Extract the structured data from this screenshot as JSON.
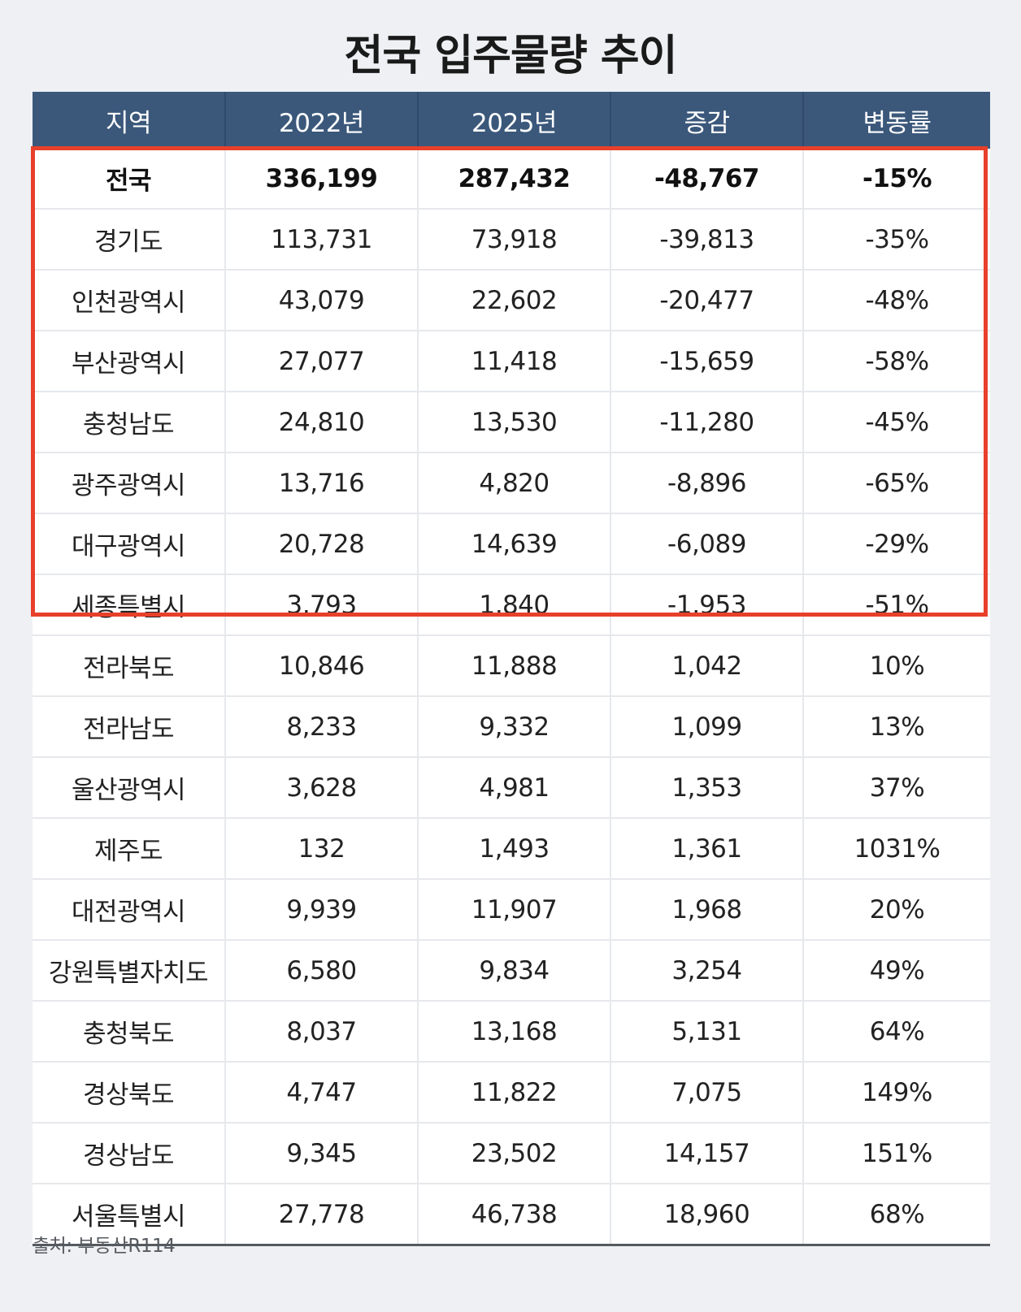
{
  "title": "전국 입주물량 추이",
  "table": {
    "headers": [
      "지역",
      "2022년",
      "2025년",
      "증감",
      "변동률"
    ],
    "rows": [
      [
        "전국",
        "336,199",
        "287,432",
        "-48,767",
        "-15%"
      ],
      [
        "경기도",
        "113,731",
        "73,918",
        "-39,813",
        "-35%"
      ],
      [
        "인천광역시",
        "43,079",
        "22,602",
        "-20,477",
        "-48%"
      ],
      [
        "부산광역시",
        "27,077",
        "11,418",
        "-15,659",
        "-58%"
      ],
      [
        "충청남도",
        "24,810",
        "13,530",
        "-11,280",
        "-45%"
      ],
      [
        "광주광역시",
        "13,716",
        "4,820",
        "-8,896",
        "-65%"
      ],
      [
        "대구광역시",
        "20,728",
        "14,639",
        "-6,089",
        "-29%"
      ],
      [
        "세종특별시",
        "3,793",
        "1,840",
        "-1,953",
        "-51%"
      ],
      [
        "전라북도",
        "10,846",
        "11,888",
        "1,042",
        "10%"
      ],
      [
        "전라남도",
        "8,233",
        "9,332",
        "1,099",
        "13%"
      ],
      [
        "울산광역시",
        "3,628",
        "4,981",
        "1,353",
        "37%"
      ],
      [
        "제주도",
        "132",
        "1,493",
        "1,361",
        "1031%"
      ],
      [
        "대전광역시",
        "9,939",
        "11,907",
        "1,968",
        "20%"
      ],
      [
        "강원특별자치도",
        "6,580",
        "9,834",
        "3,254",
        "49%"
      ],
      [
        "충청북도",
        "8,037",
        "13,168",
        "5,131",
        "64%"
      ],
      [
        "경상북도",
        "4,747",
        "11,822",
        "7,075",
        "149%"
      ],
      [
        "경상남도",
        "9,345",
        "23,502",
        "14,157",
        "151%"
      ],
      [
        "서울특별시",
        "27,778",
        "46,738",
        "18,960",
        "68%"
      ]
    ]
  },
  "highlight_color": "#e8402a",
  "header_color": "#3b587b",
  "source": "출처: 부동산R114"
}
